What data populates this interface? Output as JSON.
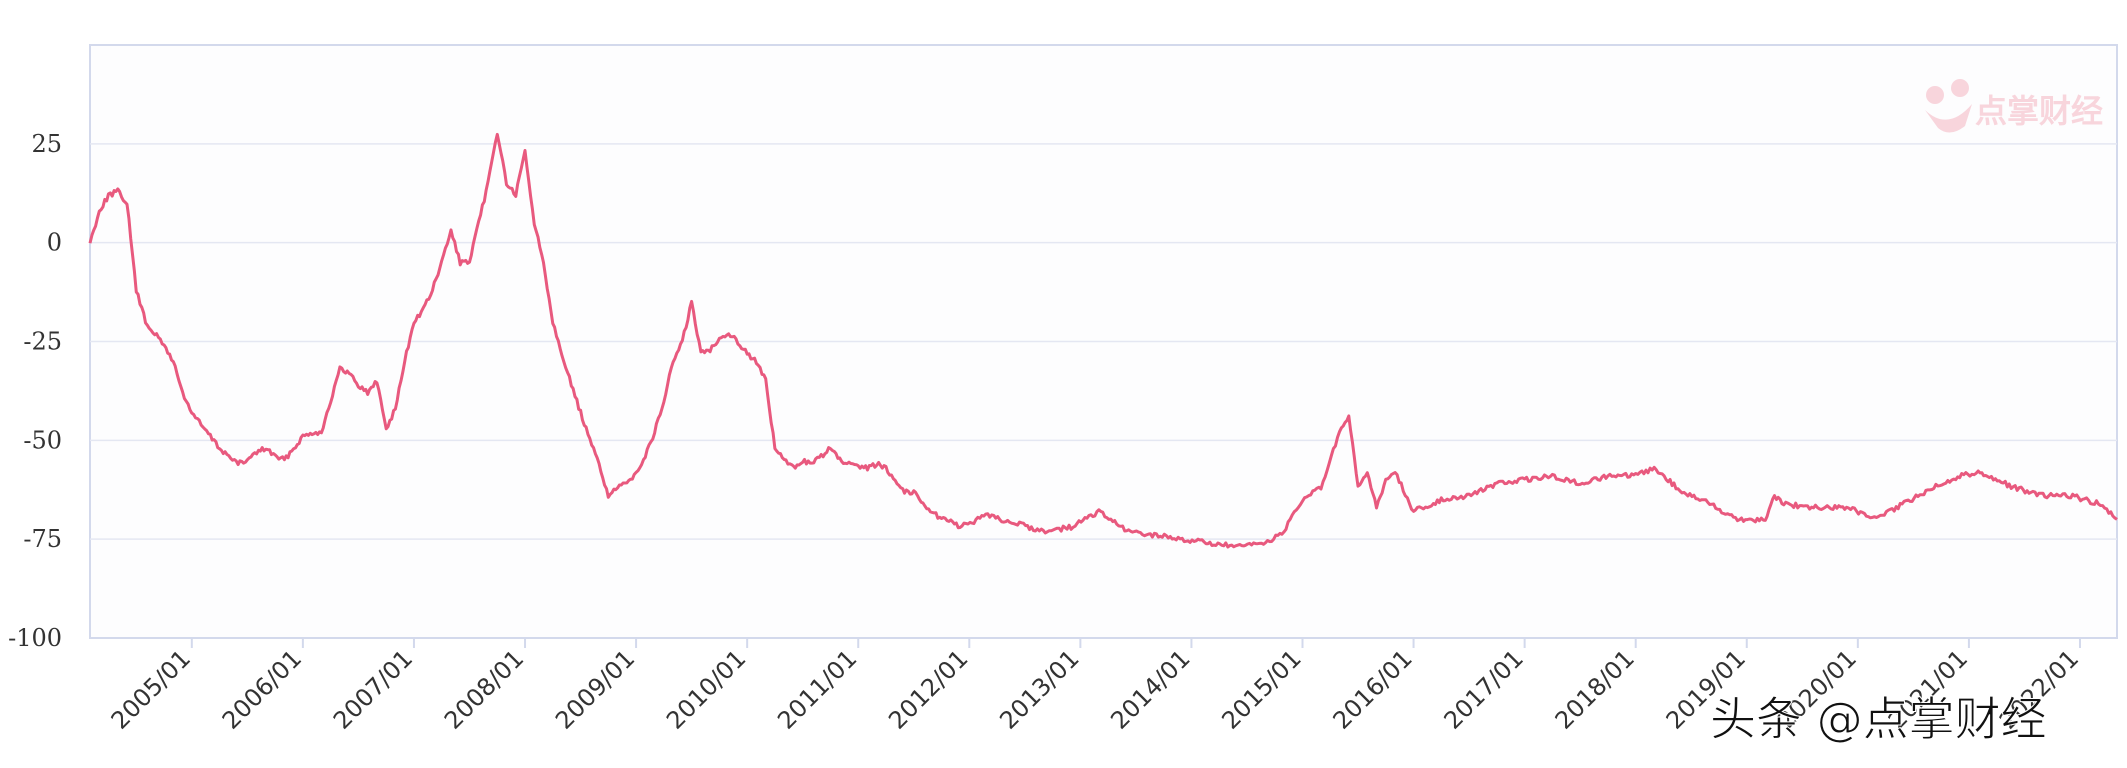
{
  "chart_data": {
    "type": "line",
    "title": "",
    "xlabel": "",
    "ylabel": "",
    "ylim": [
      -100,
      50
    ],
    "y_ticks": [
      25,
      0,
      -25,
      -50,
      -75,
      -100
    ],
    "y_tick_labels": [
      "25",
      "0",
      "-25",
      "-50",
      "-75",
      "-100"
    ],
    "x_tick_labels": [
      "2005/01",
      "2006/01",
      "2007/01",
      "2008/01",
      "2009/01",
      "2010/01",
      "2011/01",
      "2012/01",
      "2013/01",
      "2014/01",
      "2015/01",
      "2016/01",
      "2017/01",
      "2018/01",
      "2019/01",
      "2020/01",
      "2021/01",
      "2022/01"
    ],
    "x_range": [
      "2004-02",
      "2022-05"
    ],
    "grid": "horizontal",
    "series": [
      {
        "color": "#e8597e",
        "points": [
          [
            "2004-02",
            0
          ],
          [
            "2004-03",
            8
          ],
          [
            "2004-04",
            12
          ],
          [
            "2004-05",
            13
          ],
          [
            "2004-06",
            10
          ],
          [
            "2004-07",
            -12
          ],
          [
            "2004-08",
            -20
          ],
          [
            "2004-09",
            -23
          ],
          [
            "2004-10",
            -26
          ],
          [
            "2004-11",
            -30
          ],
          [
            "2004-12",
            -38
          ],
          [
            "2005-01",
            -43
          ],
          [
            "2005-02",
            -46
          ],
          [
            "2005-03",
            -49
          ],
          [
            "2005-04",
            -52
          ],
          [
            "2005-05",
            -54
          ],
          [
            "2005-06",
            -56
          ],
          [
            "2005-07",
            -55
          ],
          [
            "2005-08",
            -53
          ],
          [
            "2005-09",
            -52
          ],
          [
            "2005-10",
            -54
          ],
          [
            "2005-11",
            -55
          ],
          [
            "2005-12",
            -52
          ],
          [
            "2006-01",
            -49
          ],
          [
            "2006-02",
            -48
          ],
          [
            "2006-03",
            -48
          ],
          [
            "2006-04",
            -40
          ],
          [
            "2006-05",
            -32
          ],
          [
            "2006-06",
            -33
          ],
          [
            "2006-07",
            -36
          ],
          [
            "2006-08",
            -38
          ],
          [
            "2006-09",
            -35
          ],
          [
            "2006-10",
            -47
          ],
          [
            "2006-11",
            -42
          ],
          [
            "2006-12",
            -30
          ],
          [
            "2007-01",
            -20
          ],
          [
            "2007-02",
            -17
          ],
          [
            "2007-03",
            -12
          ],
          [
            "2007-04",
            -5
          ],
          [
            "2007-05",
            3
          ],
          [
            "2007-06",
            -5
          ],
          [
            "2007-07",
            -5
          ],
          [
            "2007-08",
            5
          ],
          [
            "2007-09",
            15
          ],
          [
            "2007-10",
            28
          ],
          [
            "2007-11",
            15
          ],
          [
            "2007-12",
            12
          ],
          [
            "2008-01",
            23
          ],
          [
            "2008-02",
            5
          ],
          [
            "2008-03",
            -5
          ],
          [
            "2008-04",
            -20
          ],
          [
            "2008-05",
            -28
          ],
          [
            "2008-06",
            -36
          ],
          [
            "2008-07",
            -43
          ],
          [
            "2008-08",
            -50
          ],
          [
            "2008-09",
            -56
          ],
          [
            "2008-10",
            -64
          ],
          [
            "2008-11",
            -62
          ],
          [
            "2008-12",
            -61
          ],
          [
            "2009-01",
            -58
          ],
          [
            "2009-02",
            -54
          ],
          [
            "2009-03",
            -48
          ],
          [
            "2009-04",
            -40
          ],
          [
            "2009-05",
            -30
          ],
          [
            "2009-06",
            -25
          ],
          [
            "2009-07",
            -15
          ],
          [
            "2009-08",
            -28
          ],
          [
            "2009-09",
            -27
          ],
          [
            "2009-10",
            -24
          ],
          [
            "2009-11",
            -23
          ],
          [
            "2009-12",
            -25
          ],
          [
            "2010-01",
            -28
          ],
          [
            "2010-02",
            -30
          ],
          [
            "2010-03",
            -35
          ],
          [
            "2010-04",
            -52
          ],
          [
            "2010-05",
            -55
          ],
          [
            "2010-06",
            -57
          ],
          [
            "2010-07",
            -55
          ],
          [
            "2010-08",
            -56
          ],
          [
            "2010-09",
            -54
          ],
          [
            "2010-10",
            -52
          ],
          [
            "2010-11",
            -55
          ],
          [
            "2010-12",
            -56
          ],
          [
            "2011-01",
            -57
          ],
          [
            "2011-02",
            -57
          ],
          [
            "2011-03",
            -56
          ],
          [
            "2011-04",
            -57
          ],
          [
            "2011-05",
            -60
          ],
          [
            "2011-06",
            -63
          ],
          [
            "2011-07",
            -63
          ],
          [
            "2011-08",
            -66
          ],
          [
            "2011-09",
            -68
          ],
          [
            "2011-10",
            -70
          ],
          [
            "2011-11",
            -70
          ],
          [
            "2011-12",
            -72
          ],
          [
            "2012-03",
            -69
          ],
          [
            "2012-06",
            -71
          ],
          [
            "2012-09",
            -73
          ],
          [
            "2012-12",
            -72
          ],
          [
            "2013-03",
            -68
          ],
          [
            "2013-06",
            -73
          ],
          [
            "2013-09",
            -74
          ],
          [
            "2013-12",
            -75
          ],
          [
            "2014-03",
            -76
          ],
          [
            "2014-06",
            -77
          ],
          [
            "2014-09",
            -76
          ],
          [
            "2014-11",
            -73
          ],
          [
            "2015-01",
            -65
          ],
          [
            "2015-03",
            -62
          ],
          [
            "2015-05",
            -48
          ],
          [
            "2015-06",
            -44
          ],
          [
            "2015-07",
            -62
          ],
          [
            "2015-08",
            -58
          ],
          [
            "2015-09",
            -67
          ],
          [
            "2015-10",
            -60
          ],
          [
            "2015-11",
            -58
          ],
          [
            "2016-01",
            -68
          ],
          [
            "2016-04",
            -65
          ],
          [
            "2016-07",
            -64
          ],
          [
            "2016-10",
            -61
          ],
          [
            "2017-01",
            -60
          ],
          [
            "2017-04",
            -59
          ],
          [
            "2017-07",
            -61
          ],
          [
            "2017-10",
            -59
          ],
          [
            "2018-01",
            -59
          ],
          [
            "2018-03",
            -57
          ],
          [
            "2018-06",
            -63
          ],
          [
            "2018-09",
            -66
          ],
          [
            "2018-12",
            -70
          ],
          [
            "2019-03",
            -70
          ],
          [
            "2019-04",
            -64
          ],
          [
            "2019-05",
            -66
          ],
          [
            "2019-08",
            -67
          ],
          [
            "2019-12",
            -67
          ],
          [
            "2020-03",
            -70
          ],
          [
            "2020-06",
            -66
          ],
          [
            "2020-09",
            -62
          ],
          [
            "2020-12",
            -59
          ],
          [
            "2021-02",
            -58
          ],
          [
            "2021-03",
            -59
          ],
          [
            "2021-06",
            -62
          ],
          [
            "2021-09",
            -64
          ],
          [
            "2021-12",
            -64
          ],
          [
            "2022-03",
            -66
          ],
          [
            "2022-05",
            -70
          ]
        ]
      }
    ]
  },
  "watermark": {
    "text": "点掌财经",
    "color": "#f4b5c2"
  },
  "footer": {
    "text": "头条 @点掌财经",
    "color": "#111111"
  },
  "colors": {
    "line": "#e8597e",
    "grid": "#e4e7f2",
    "axis": "#d3d9ec",
    "plot_bg": "#fdfdfe"
  }
}
